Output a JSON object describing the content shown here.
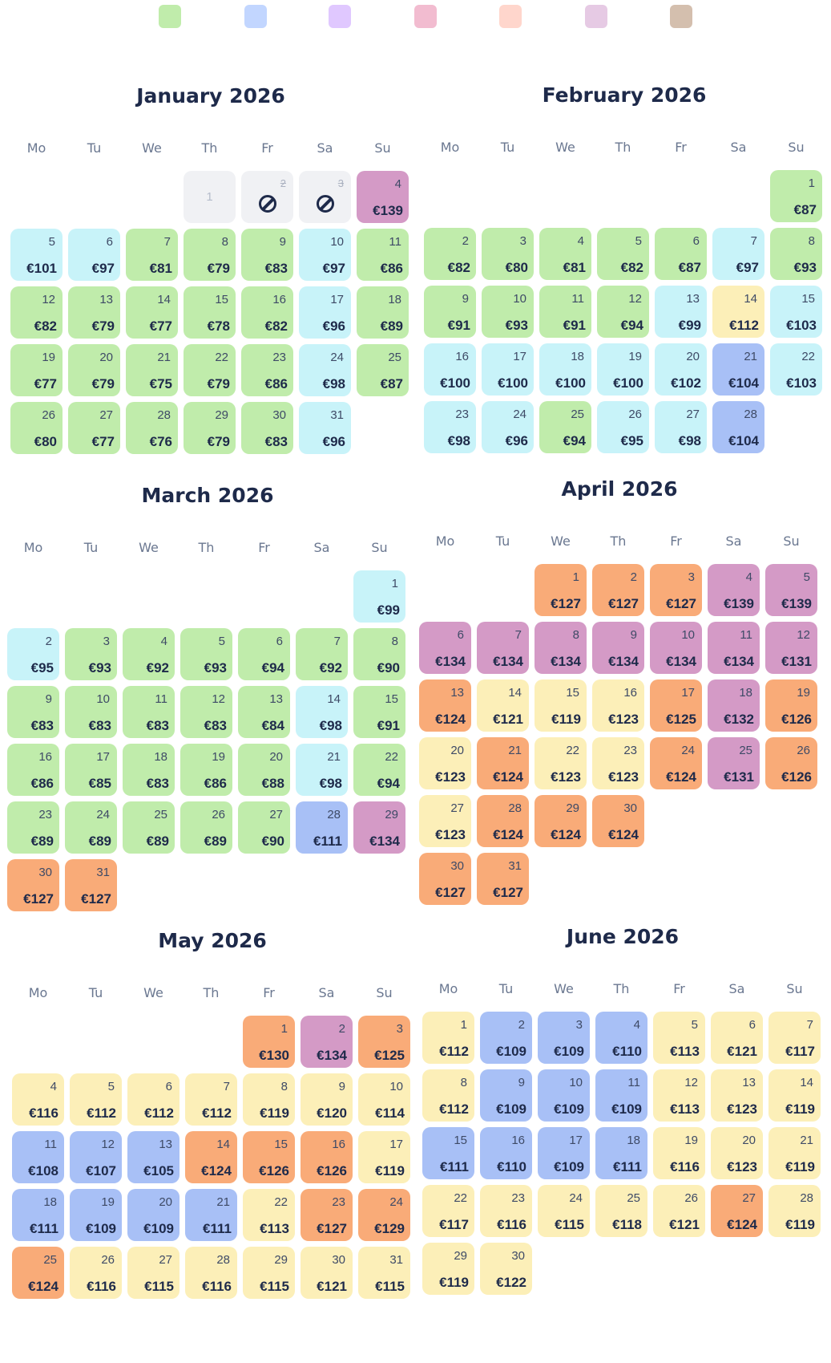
{
  "legend": {
    "swatches": [
      "#c0ecab",
      "#c2d6ff",
      "#e0c8ff",
      "#f2bcd0",
      "#ffd6cc",
      "#e6cae4",
      "#d4bfae"
    ]
  },
  "palette": {
    "g": "#c0ecab",
    "c": "#c8f3f9",
    "p": "#d49ac6",
    "o": "#f9ab78",
    "y": "#fcefb8",
    "b": "#a8c0f6"
  },
  "currency": "€",
  "weekdays": [
    "Mo",
    "Tu",
    "We",
    "Th",
    "Fr",
    "Sa",
    "Su"
  ],
  "months": [
    {
      "title": "January 2026",
      "offset": 3,
      "days": [
        [
          1,
          "disabled",
          null
        ],
        [
          2,
          "blocked",
          null
        ],
        [
          3,
          "blocked",
          null
        ],
        [
          4,
          "p",
          139
        ],
        [
          5,
          "c",
          101
        ],
        [
          6,
          "c",
          97
        ],
        [
          7,
          "g",
          81
        ],
        [
          8,
          "g",
          79
        ],
        [
          9,
          "g",
          83
        ],
        [
          10,
          "c",
          97
        ],
        [
          11,
          "g",
          86
        ],
        [
          12,
          "g",
          82
        ],
        [
          13,
          "g",
          79
        ],
        [
          14,
          "g",
          77
        ],
        [
          15,
          "g",
          78
        ],
        [
          16,
          "g",
          82
        ],
        [
          17,
          "c",
          96
        ],
        [
          18,
          "g",
          89
        ],
        [
          19,
          "g",
          77
        ],
        [
          20,
          "g",
          79
        ],
        [
          21,
          "g",
          75
        ],
        [
          22,
          "g",
          79
        ],
        [
          23,
          "g",
          86
        ],
        [
          24,
          "c",
          98
        ],
        [
          25,
          "g",
          87
        ],
        [
          26,
          "g",
          80
        ],
        [
          27,
          "g",
          77
        ],
        [
          28,
          "g",
          76
        ],
        [
          29,
          "g",
          79
        ],
        [
          30,
          "g",
          83
        ],
        [
          31,
          "c",
          96
        ]
      ]
    },
    {
      "title": "February 2026",
      "offset": 6,
      "days": [
        [
          1,
          "g",
          87
        ],
        [
          2,
          "g",
          82
        ],
        [
          3,
          "g",
          80
        ],
        [
          4,
          "g",
          81
        ],
        [
          5,
          "g",
          82
        ],
        [
          6,
          "g",
          87
        ],
        [
          7,
          "c",
          97
        ],
        [
          8,
          "g",
          93
        ],
        [
          9,
          "g",
          91
        ],
        [
          10,
          "g",
          93
        ],
        [
          11,
          "g",
          91
        ],
        [
          12,
          "g",
          94
        ],
        [
          13,
          "c",
          99
        ],
        [
          14,
          "y",
          112
        ],
        [
          15,
          "c",
          103
        ],
        [
          16,
          "c",
          100
        ],
        [
          17,
          "c",
          100
        ],
        [
          18,
          "c",
          100
        ],
        [
          19,
          "c",
          100
        ],
        [
          20,
          "c",
          102
        ],
        [
          21,
          "b",
          104
        ],
        [
          22,
          "c",
          103
        ],
        [
          23,
          "c",
          98
        ],
        [
          24,
          "c",
          96
        ],
        [
          25,
          "g",
          94
        ],
        [
          26,
          "c",
          95
        ],
        [
          27,
          "c",
          98
        ],
        [
          28,
          "b",
          104
        ]
      ]
    },
    {
      "title": "March 2026",
      "offset": 6,
      "days": [
        [
          1,
          "c",
          99
        ],
        [
          2,
          "c",
          95
        ],
        [
          3,
          "g",
          93
        ],
        [
          4,
          "g",
          92
        ],
        [
          5,
          "g",
          93
        ],
        [
          6,
          "g",
          94
        ],
        [
          7,
          "g",
          92
        ],
        [
          8,
          "g",
          90
        ],
        [
          9,
          "g",
          83
        ],
        [
          10,
          "g",
          83
        ],
        [
          11,
          "g",
          83
        ],
        [
          12,
          "g",
          83
        ],
        [
          13,
          "g",
          84
        ],
        [
          14,
          "c",
          98
        ],
        [
          15,
          "g",
          91
        ],
        [
          16,
          "g",
          86
        ],
        [
          17,
          "g",
          85
        ],
        [
          18,
          "g",
          83
        ],
        [
          19,
          "g",
          86
        ],
        [
          20,
          "g",
          88
        ],
        [
          21,
          "c",
          98
        ],
        [
          22,
          "g",
          94
        ],
        [
          23,
          "g",
          89
        ],
        [
          24,
          "g",
          89
        ],
        [
          25,
          "g",
          89
        ],
        [
          26,
          "g",
          89
        ],
        [
          27,
          "g",
          90
        ],
        [
          28,
          "b",
          111
        ],
        [
          29,
          "p",
          134
        ],
        [
          30,
          "o",
          127
        ],
        [
          31,
          "o",
          127
        ]
      ]
    },
    {
      "title": "April 2026",
      "offset": 2,
      "days": [
        [
          1,
          "o",
          127
        ],
        [
          2,
          "o",
          127
        ],
        [
          3,
          "o",
          127
        ],
        [
          4,
          "p",
          139
        ],
        [
          5,
          "p",
          139
        ],
        [
          6,
          "p",
          134
        ],
        [
          7,
          "p",
          134
        ],
        [
          8,
          "p",
          134
        ],
        [
          9,
          "p",
          134
        ],
        [
          10,
          "p",
          134
        ],
        [
          11,
          "p",
          134
        ],
        [
          12,
          "p",
          131
        ],
        [
          13,
          "o",
          124
        ],
        [
          14,
          "y",
          121
        ],
        [
          15,
          "y",
          119
        ],
        [
          16,
          "y",
          123
        ],
        [
          17,
          "o",
          125
        ],
        [
          18,
          "p",
          132
        ],
        [
          19,
          "o",
          126
        ],
        [
          20,
          "y",
          123
        ],
        [
          21,
          "o",
          124
        ],
        [
          22,
          "y",
          123
        ],
        [
          23,
          "y",
          123
        ],
        [
          24,
          "o",
          124
        ],
        [
          25,
          "p",
          131
        ],
        [
          26,
          "o",
          126
        ],
        [
          27,
          "y",
          123
        ],
        [
          28,
          "o",
          124
        ],
        [
          29,
          "o",
          124
        ],
        [
          30,
          "o",
          124
        ]
      ],
      "extra": [
        [
          30,
          "o",
          127
        ],
        [
          31,
          "o",
          127
        ]
      ]
    },
    {
      "title": "May 2026",
      "offset": 4,
      "days": [
        [
          1,
          "o",
          130
        ],
        [
          2,
          "p",
          134
        ],
        [
          3,
          "o",
          125
        ],
        [
          4,
          "y",
          116
        ],
        [
          5,
          "y",
          112
        ],
        [
          6,
          "y",
          112
        ],
        [
          7,
          "y",
          112
        ],
        [
          8,
          "y",
          119
        ],
        [
          9,
          "y",
          120
        ],
        [
          10,
          "y",
          114
        ],
        [
          11,
          "b",
          108
        ],
        [
          12,
          "b",
          107
        ],
        [
          13,
          "b",
          105
        ],
        [
          14,
          "o",
          124
        ],
        [
          15,
          "o",
          126
        ],
        [
          16,
          "o",
          126
        ],
        [
          17,
          "y",
          119
        ],
        [
          18,
          "b",
          111
        ],
        [
          19,
          "b",
          109
        ],
        [
          20,
          "b",
          109
        ],
        [
          21,
          "b",
          111
        ],
        [
          22,
          "y",
          113
        ],
        [
          23,
          "o",
          127
        ],
        [
          24,
          "o",
          129
        ],
        [
          25,
          "o",
          124
        ],
        [
          26,
          "y",
          116
        ],
        [
          27,
          "y",
          115
        ],
        [
          28,
          "y",
          116
        ],
        [
          29,
          "y",
          115
        ],
        [
          30,
          "y",
          121
        ],
        [
          31,
          "y",
          115
        ]
      ]
    },
    {
      "title": "June 2026",
      "offset": 0,
      "days": [
        [
          1,
          "y",
          112
        ],
        [
          2,
          "b",
          109
        ],
        [
          3,
          "b",
          109
        ],
        [
          4,
          "b",
          110
        ],
        [
          5,
          "y",
          113
        ],
        [
          6,
          "y",
          121
        ],
        [
          7,
          "y",
          117
        ],
        [
          8,
          "y",
          112
        ],
        [
          9,
          "b",
          109
        ],
        [
          10,
          "b",
          109
        ],
        [
          11,
          "b",
          109
        ],
        [
          12,
          "y",
          113
        ],
        [
          13,
          "y",
          123
        ],
        [
          14,
          "y",
          119
        ],
        [
          15,
          "b",
          111
        ],
        [
          16,
          "b",
          110
        ],
        [
          17,
          "b",
          109
        ],
        [
          18,
          "b",
          111
        ],
        [
          19,
          "y",
          116
        ],
        [
          20,
          "y",
          123
        ],
        [
          21,
          "y",
          119
        ],
        [
          22,
          "y",
          117
        ],
        [
          23,
          "y",
          116
        ],
        [
          24,
          "y",
          115
        ],
        [
          25,
          "y",
          118
        ],
        [
          26,
          "y",
          121
        ],
        [
          27,
          "o",
          124
        ],
        [
          28,
          "y",
          119
        ],
        [
          29,
          "y",
          119
        ],
        [
          30,
          "y",
          122
        ]
      ]
    }
  ]
}
